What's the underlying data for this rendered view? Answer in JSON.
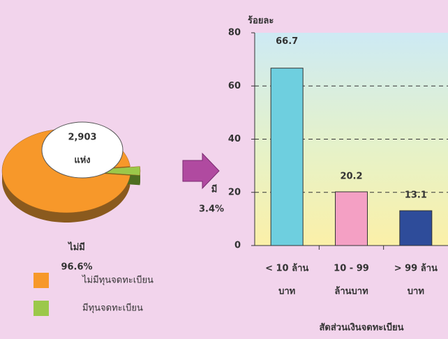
{
  "chart_data": [
    {
      "type": "pie",
      "categories": [
        "ไม่มี",
        "มี"
      ],
      "values": [
        96.6,
        3.4
      ],
      "value_labels": [
        "96.6%",
        "3.4%"
      ],
      "colors": [
        "#f7982a",
        "#9bc84a"
      ],
      "annotation": [
        "2,903",
        "แห่ง"
      ],
      "legend": [
        "ไม่มีทุนจดทะเบียน",
        "มีทุนจดทะเบียน"
      ]
    },
    {
      "type": "bar",
      "y_label": "ร้อยละ",
      "x_label": "สัดส่วนเงินจดทะเบียน",
      "categories": [
        [
          "< 10 ล้าน",
          "บาท"
        ],
        [
          "10 - 99",
          "ล้านบาท"
        ],
        [
          "> 99 ล้าน",
          "บาท"
        ]
      ],
      "values": [
        66.7,
        20.2,
        13.1
      ],
      "colors": [
        "#6ecfdf",
        "#f4a0c4",
        "#2e4c9a"
      ],
      "ylim": [
        0,
        80
      ],
      "yticks": [
        0,
        20,
        40,
        60,
        80
      ],
      "grid": true
    }
  ]
}
